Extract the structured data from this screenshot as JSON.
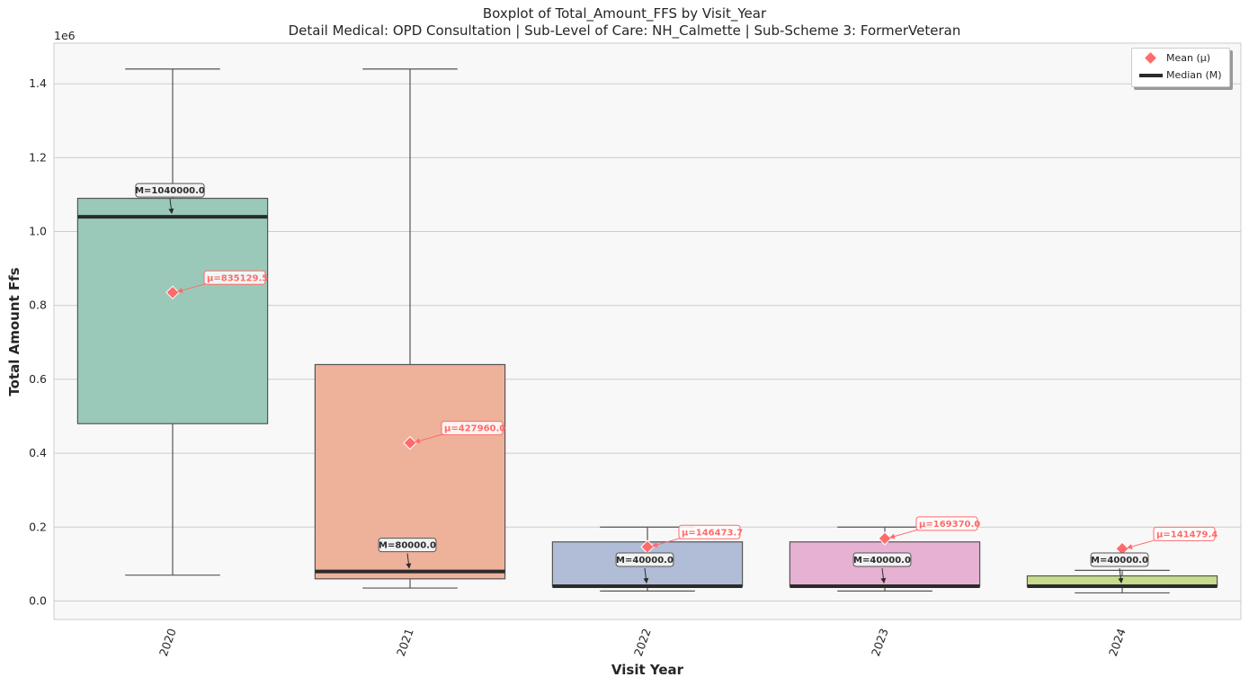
{
  "title_line1": "Boxplot of Total_Amount_FFS by Visit_Year",
  "title_line2": "Detail Medical: OPD Consultation | Sub-Level of Care: NH_Calmette | Sub-Scheme 3: FormerVeteran",
  "legend": {
    "mean_label": "Mean (μ)",
    "median_label": "Median (M)"
  },
  "colors": {
    "boxes": [
      "#9ac9b9",
      "#eeb19a",
      "#b1bdd7",
      "#e7b1d3",
      "#c6db8c"
    ],
    "mean": "#ff6b6b",
    "median": "#2b2b2b",
    "plot_bg": "#f8f8f8",
    "grid": "#cccccc"
  },
  "chart_data": {
    "type": "box",
    "title": "Boxplot of Total_Amount_FFS by Visit_Year",
    "subtitle": "Detail Medical: OPD Consultation | Sub-Level of Care: NH_Calmette | Sub-Scheme 3: FormerVeteran",
    "xlabel": "Visit Year",
    "ylabel": "Total Amount Ffs",
    "y_offset_text": "1e6",
    "ylim": [
      -50000,
      1510000
    ],
    "yticks": [
      0,
      200000,
      400000,
      600000,
      800000,
      1000000,
      1200000,
      1400000
    ],
    "ytick_labels": [
      "0.0",
      "0.2",
      "0.4",
      "0.6",
      "0.8",
      "1.0",
      "1.2",
      "1.4"
    ],
    "grid": true,
    "legend_position": "top-right",
    "categories": [
      "2020",
      "2021",
      "2022",
      "2023",
      "2024"
    ],
    "boxes": [
      {
        "category": "2020",
        "whisker_low": 70000,
        "q1": 480000,
        "median": 1040000,
        "q3": 1090000,
        "whisker_high": 1440000,
        "mean": 835129.5,
        "median_label": "M=1040000.0",
        "mean_label": "μ=835129.5"
      },
      {
        "category": "2021",
        "whisker_low": 35000,
        "q1": 60000,
        "median": 80000,
        "q3": 640000,
        "whisker_high": 1440000,
        "mean": 427960.0,
        "median_label": "M=80000.0",
        "mean_label": "μ=427960.0"
      },
      {
        "category": "2022",
        "whisker_low": 27000,
        "q1": 40000,
        "median": 40000,
        "q3": 160000,
        "whisker_high": 200000,
        "mean": 146473.7,
        "median_label": "M=40000.0",
        "mean_label": "μ=146473.7"
      },
      {
        "category": "2023",
        "whisker_low": 27000,
        "q1": 40000,
        "median": 40000,
        "q3": 160000,
        "whisker_high": 200000,
        "mean": 169370.0,
        "median_label": "M=40000.0",
        "mean_label": "μ=169370.0"
      },
      {
        "category": "2024",
        "whisker_low": 22000,
        "q1": 40000,
        "median": 40000,
        "q3": 68000,
        "whisker_high": 83000,
        "mean": 141479.4,
        "median_label": "M=40000.0",
        "mean_label": "μ=141479.4"
      }
    ]
  }
}
